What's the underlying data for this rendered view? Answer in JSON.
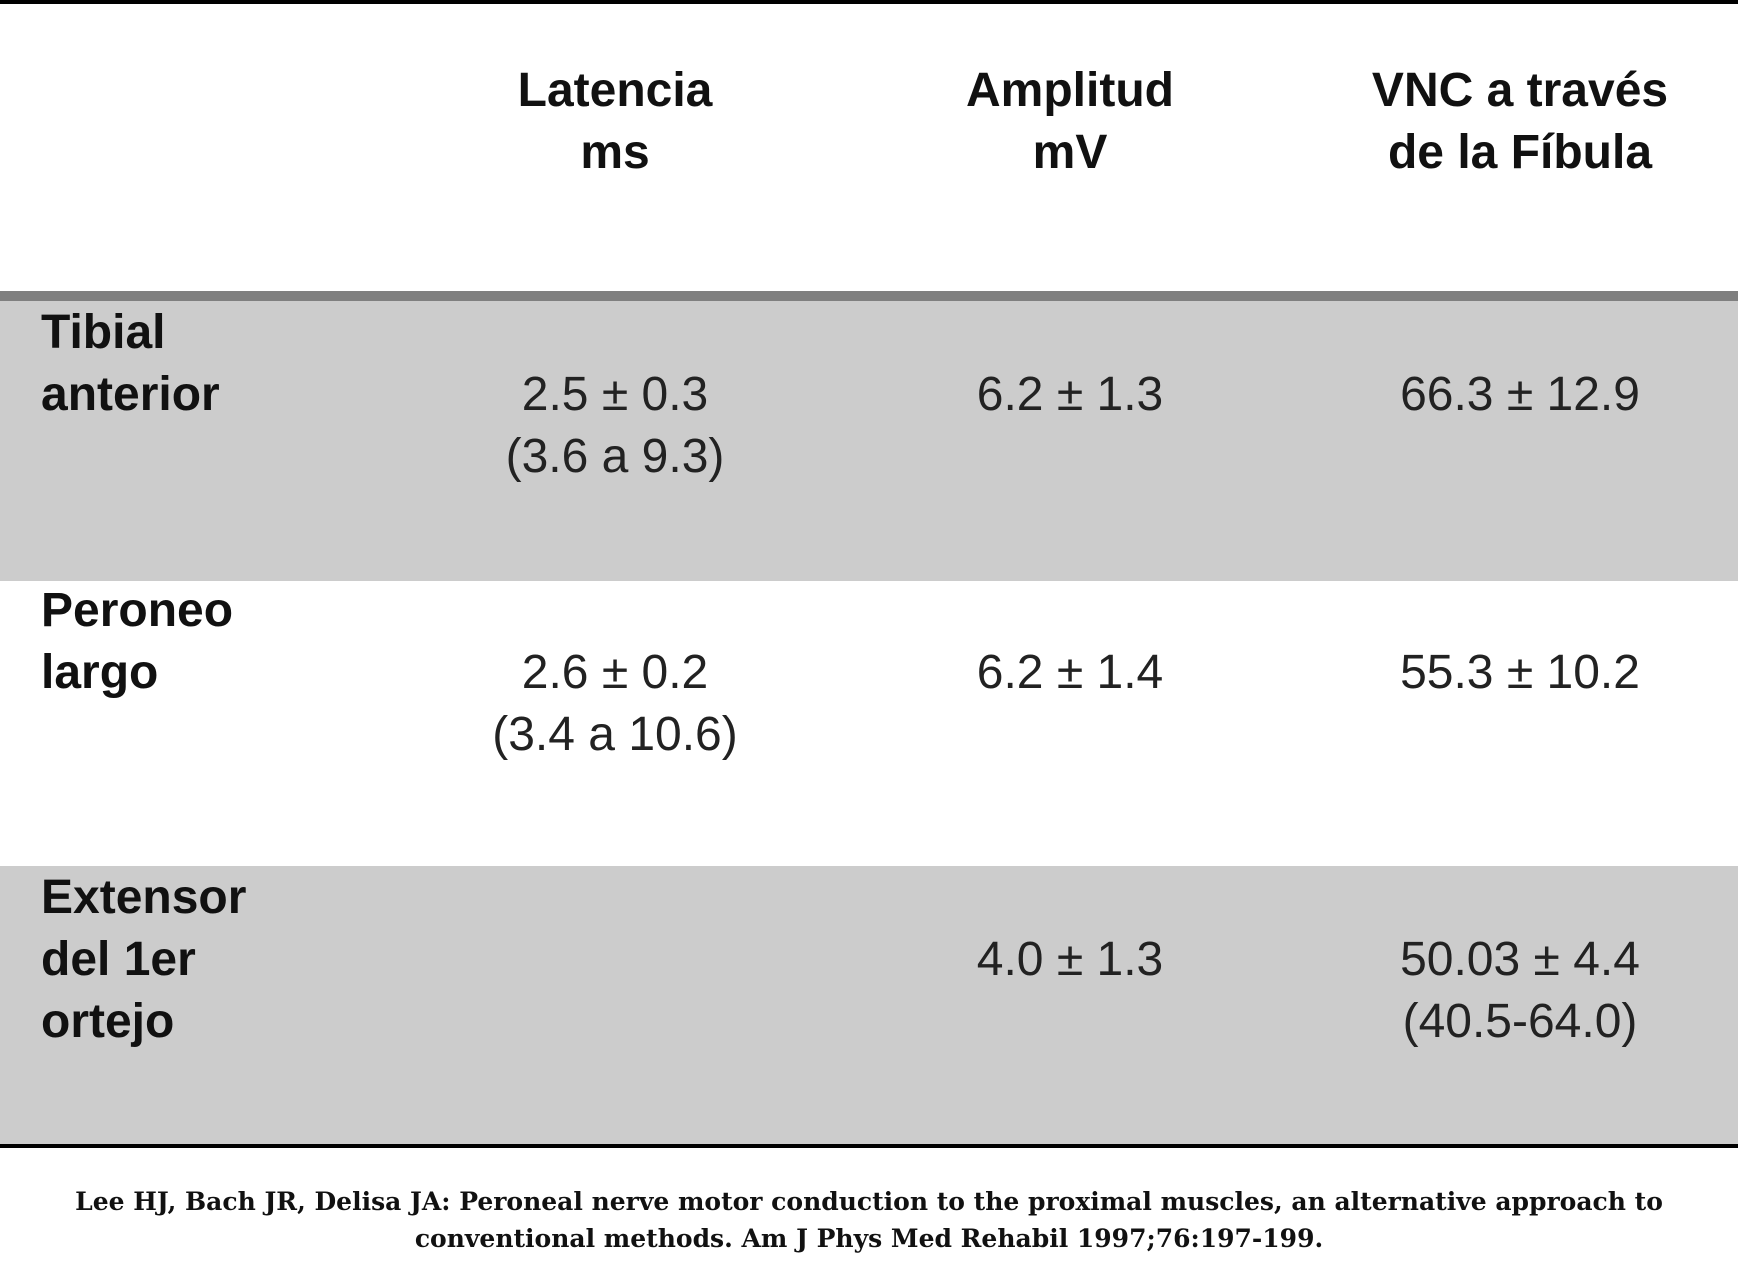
{
  "table": {
    "headers": [
      "Latencia\nms",
      "Amplitud\nmV",
      "VNC a través\nde la Fíbula"
    ],
    "rows": [
      {
        "label": "Tibial\nanterior",
        "latencia": "2.5 ± 0.3\n(3.6 a 9.3)",
        "amplitud": "6.2 ± 1.3",
        "vnc": "66.3 ± 12.9"
      },
      {
        "label": "Peroneo\nlargo",
        "latencia": "2.6 ± 0.2\n(3.4 a 10.6)",
        "amplitud": "6.2 ± 1.4",
        "vnc": "55.3 ± 10.2"
      },
      {
        "label": "Extensor\ndel 1er\nortejo",
        "latencia": "",
        "amplitud": "4.0 ± 1.3",
        "vnc": "50.03 ± 4.4\n(40.5-64.0)"
      }
    ]
  },
  "citation": "Lee HJ, Bach JR, Delisa JA: Peroneal nerve motor conduction to the proximal muscles, an alternative approach to\nconventional methods. Am J Phys Med Rehabil 1997;76:197-199.",
  "colors": {
    "band": "#cccccc",
    "header_rule": "#7f7f7f",
    "rule": "#000000"
  }
}
